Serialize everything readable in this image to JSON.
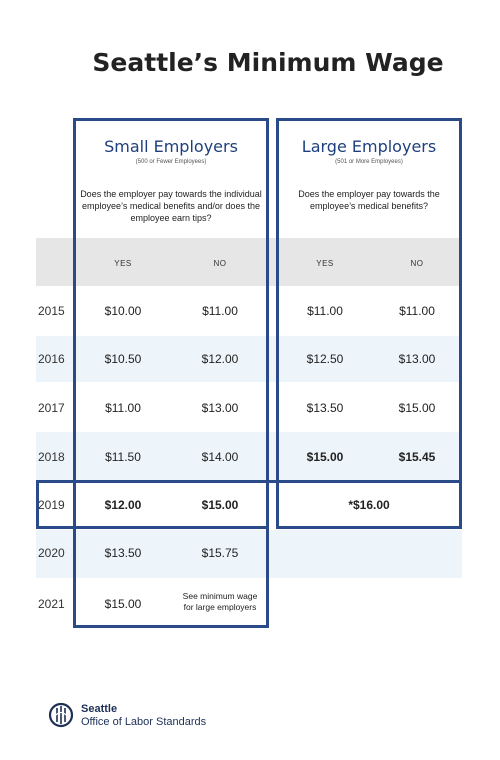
{
  "title": "Seattle’s Minimum Wage",
  "small": {
    "title": "Small Employers",
    "subtitle": "(500 or Fewer Employees)",
    "question": "Does the employer pay towards the individual employee’s medical benefits and/or does the employee earn tips?",
    "col_yes": "YES",
    "col_no": "NO"
  },
  "large": {
    "title": "Large Employers",
    "subtitle": "(501 or More Employees)",
    "question": "Does the employer pay towards the employee’s medical benefits?",
    "col_yes": "YES",
    "col_no": "NO"
  },
  "rows": [
    {
      "year": "2015",
      "s_yes": "$10.00",
      "s_no": "$11.00",
      "l_yes": "$11.00",
      "l_no": "$11.00"
    },
    {
      "year": "2016",
      "s_yes": "$10.50",
      "s_no": "$12.00",
      "l_yes": "$12.50",
      "l_no": "$13.00"
    },
    {
      "year": "2017",
      "s_yes": "$11.00",
      "s_no": "$13.00",
      "l_yes": "$13.50",
      "l_no": "$15.00"
    },
    {
      "year": "2018",
      "s_yes": "$11.50",
      "s_no": "$14.00",
      "l_yes": "$15.00",
      "l_no": "$15.45"
    },
    {
      "year": "2019",
      "s_yes": "$12.00",
      "s_no": "$15.00",
      "l_merged": "*$16.00"
    },
    {
      "year": "2020",
      "s_yes": "$13.50",
      "s_no": "$15.75"
    },
    {
      "year": "2021",
      "s_yes": "$15.00",
      "s_no_line1": "See minimum wage",
      "s_no_line2": "for large employers"
    }
  ],
  "logo": {
    "icon": "seattle-seal-icon",
    "line1": "Seattle",
    "line2": "Office of Labor Standards"
  },
  "colors": {
    "accent": "#2a4a8a",
    "title_blue": "#1f3f7e",
    "header_grey": "#e6e6e6",
    "row_tint": "#eef5fa"
  }
}
